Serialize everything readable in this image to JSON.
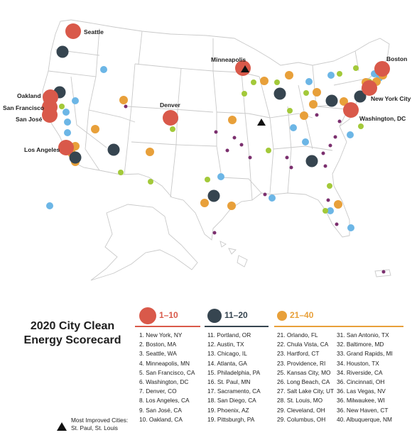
{
  "colors": {
    "tier1": "#d9594a",
    "tier2": "#364550",
    "tier3": "#e8a03a",
    "blue": "#6cb6e6",
    "green": "#a3c93a",
    "purple": "#7b2f6e",
    "state_border": "#c9c9c9",
    "land": "#ffffff"
  },
  "map": {
    "labels": {
      "seattle": "Seattle",
      "minneapolis": "Minneapolis",
      "boston": "Boston",
      "oakland": "Oakland",
      "san_francisco": "San Francisco",
      "san_jose": "San José",
      "new_york": "New York City",
      "washington": "Washington, DC",
      "denver": "Denver",
      "los_angeles": "Los Angeles"
    }
  },
  "title": {
    "line1": "2020 City Clean",
    "line2": "Energy Scorecard"
  },
  "legend": {
    "tier1": {
      "range": "1–10",
      "cities": [
        "1. New York, NY",
        "2. Boston, MA",
        "3. Seattle, WA",
        "4. Minneapolis, MN",
        "5. San Francisco, CA",
        "6. Washington, DC",
        "7. Denver, CO",
        "8. Los Angeles, CA",
        "9. San José, CA",
        "10. Oakland, CA"
      ]
    },
    "tier2": {
      "range": "11–20",
      "cities": [
        "11. Portland, OR",
        "12. Austin, TX",
        "13. Chicago, IL",
        "14. Atlanta, GA",
        "15. Philadelphia, PA",
        "16. St. Paul, MN",
        "17. Sacramento, CA",
        "18. San Diego, CA",
        "19. Phoenix, AZ",
        "19. Pittsburgh, PA"
      ]
    },
    "tier3": {
      "range": "21–40",
      "cities_a": [
        "21. Orlando, FL",
        "22. Chula Vista, CA",
        "23. Hartford, CT",
        "23. Providence, RI",
        "25. Kansas City, MO",
        "26. Long Beach, CA",
        "27. Salt Lake City, UT",
        "28. St. Louis, MO",
        "29. Cleveland, OH",
        "29. Columbus, OH"
      ],
      "cities_b": [
        "31. San Antonio, TX",
        "32. Baltimore, MD",
        "33. Grand Rapids, MI",
        "34. Houston, TX",
        "34. Riverside, CA",
        "36. Cincinnati, OH",
        "36. Las Vegas, NV",
        "36. Milwaukee, WI",
        "36. New Haven, CT",
        "40. Albuquerque, NM"
      ]
    }
  },
  "most_improved": {
    "line1": "Most Improved Cities:",
    "line2": "St. Paul, St. Louis"
  }
}
